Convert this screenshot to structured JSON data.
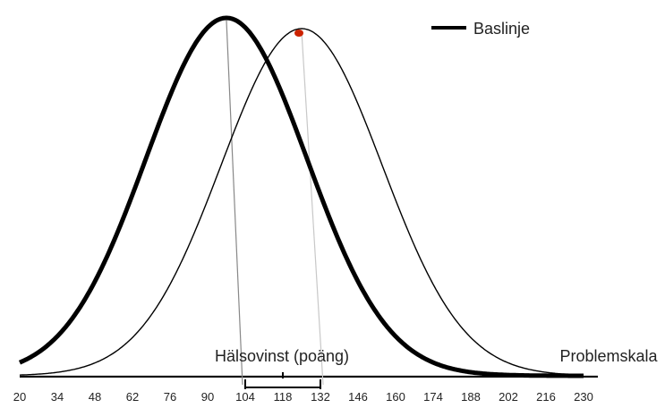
{
  "chart_data": {
    "type": "line",
    "title": "",
    "xlabel": "",
    "ylabel": "",
    "x_ticks": [
      20,
      34,
      48,
      62,
      76,
      90,
      104,
      118,
      132,
      146,
      160,
      174,
      188,
      202,
      216,
      230
    ],
    "xlim": [
      20,
      230
    ],
    "series": [
      {
        "name": "Baslinje",
        "distribution": "normal",
        "mean": 97,
        "sd": 30,
        "style": "thick"
      },
      {
        "name": "",
        "distribution": "normal",
        "mean": 125,
        "sd": 30,
        "style": "thin"
      }
    ],
    "mean_markers": [
      97,
      125
    ],
    "interval": {
      "low": 104,
      "mid": 118,
      "high": 132
    },
    "annotations": {
      "gain_label": "Hälsovinst (poäng)",
      "scale_label": "Problemskala"
    },
    "legend": {
      "position": "top-right",
      "label": "Baslinje"
    },
    "colors": {
      "curve": "#000000",
      "marker": "#cc2200",
      "axis": "#dddddd",
      "guide_dark": "#888888",
      "guide_light": "#c8c8c8"
    },
    "grid": false
  }
}
